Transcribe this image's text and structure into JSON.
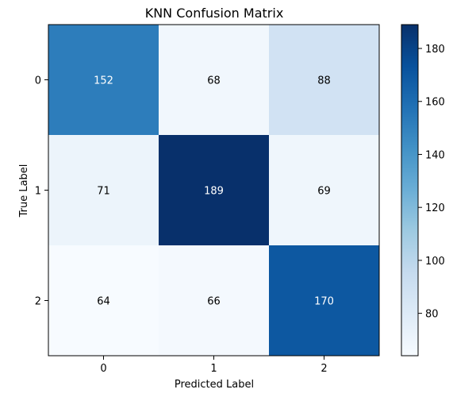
{
  "chart_data": {
    "type": "heatmap",
    "title": "KNN Confusion Matrix",
    "xlabel": "Predicted Label",
    "ylabel": "True Label",
    "x_categories": [
      "0",
      "1",
      "2"
    ],
    "y_categories": [
      "0",
      "1",
      "2"
    ],
    "values": [
      [
        152,
        68,
        88
      ],
      [
        71,
        189,
        69
      ],
      [
        64,
        66,
        170
      ]
    ],
    "colorbar": {
      "range": [
        64,
        189
      ],
      "ticks": [
        80,
        100,
        120,
        140,
        160,
        180
      ],
      "colormap": "Blues"
    }
  }
}
